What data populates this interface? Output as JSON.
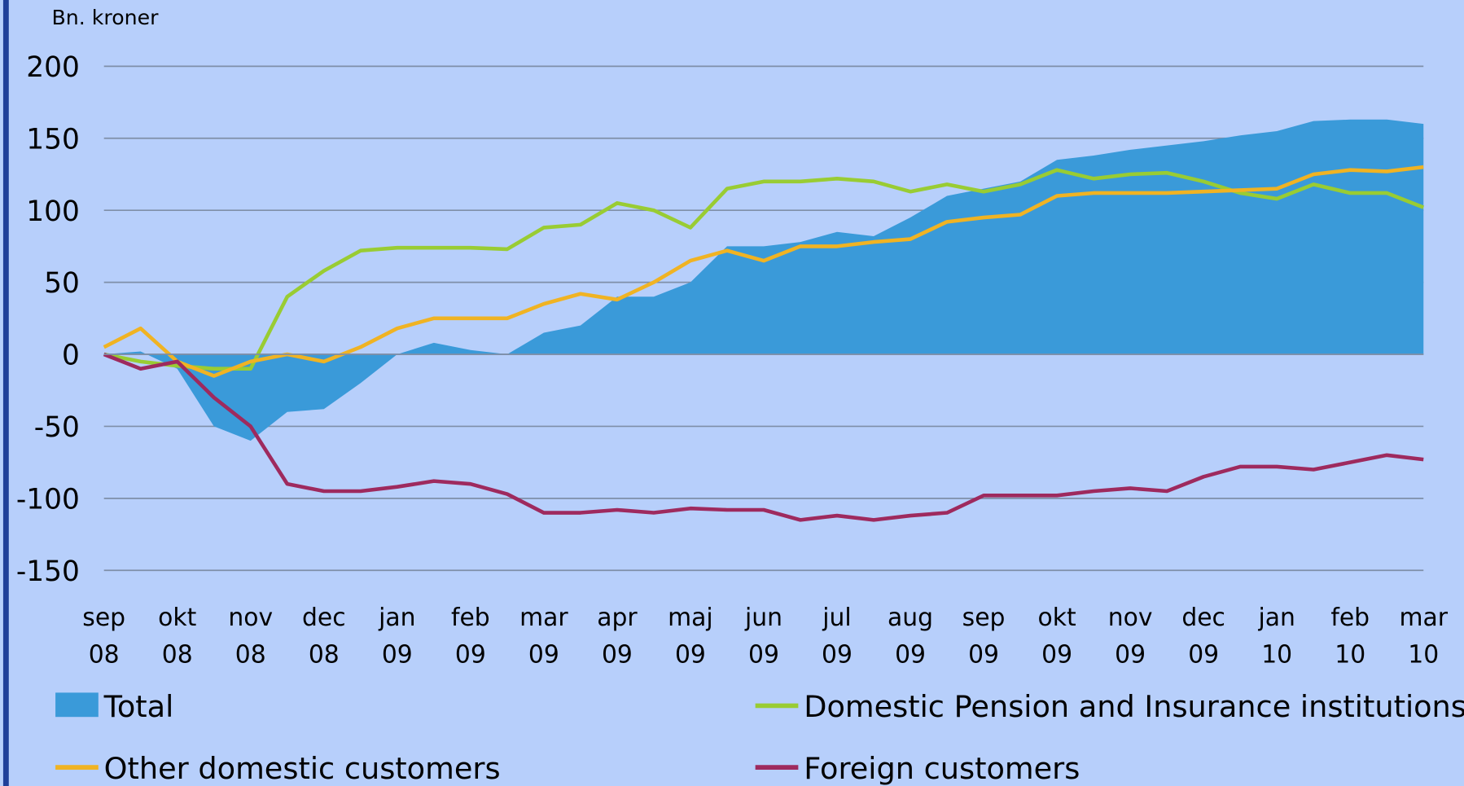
{
  "chart_data": {
    "type": "line",
    "y_label": "Bn. kroner",
    "categories": [
      "sep 08",
      null,
      "okt 08",
      null,
      "nov 08",
      null,
      "dec 08",
      null,
      "jan 09",
      null,
      "feb 09",
      null,
      "mar 09",
      null,
      "apr 09",
      null,
      "maj 09",
      null,
      "jun 09",
      null,
      "jul 09",
      null,
      "aug 09",
      null,
      "sep 09",
      null,
      "okt 09",
      null,
      "nov 09",
      null,
      "dec 09",
      null,
      "jan 10",
      null,
      "feb 10",
      null,
      "mar 10"
    ],
    "ylim": [
      -150,
      200
    ],
    "yticks": [
      -150,
      -100,
      -50,
      0,
      50,
      100,
      150,
      200
    ],
    "grid": true,
    "series": [
      {
        "name": "Total",
        "kind": "area",
        "color": "#3a9ad9",
        "values": [
          0,
          2,
          -10,
          -50,
          -60,
          -40,
          -38,
          -20,
          0,
          8,
          3,
          0,
          15,
          20,
          40,
          40,
          50,
          75,
          75,
          78,
          85,
          82,
          95,
          110,
          115,
          120,
          135,
          138,
          142,
          145,
          148,
          152,
          155,
          162,
          163,
          163,
          160
        ]
      },
      {
        "name": "Domestic Pension and Insurance institutions",
        "kind": "line",
        "color": "#99cc33",
        "values": [
          0,
          -5,
          -8,
          -10,
          -10,
          40,
          58,
          72,
          74,
          74,
          74,
          73,
          88,
          90,
          105,
          100,
          88,
          115,
          120,
          120,
          122,
          120,
          113,
          118,
          113,
          118,
          128,
          122,
          125,
          126,
          120,
          112,
          108,
          118,
          112,
          112,
          102
        ]
      },
      {
        "name": "Other domestic customers",
        "kind": "line",
        "color": "#f0b323",
        "values": [
          5,
          18,
          -5,
          -15,
          -5,
          0,
          -5,
          5,
          18,
          25,
          25,
          25,
          35,
          42,
          38,
          50,
          65,
          72,
          65,
          75,
          75,
          78,
          80,
          92,
          95,
          97,
          110,
          112,
          112,
          112,
          113,
          114,
          115,
          125,
          128,
          127,
          130
        ]
      },
      {
        "name": "Foreign customers",
        "kind": "line",
        "color": "#9e2a5e",
        "values": [
          0,
          -10,
          -5,
          -30,
          -50,
          -90,
          -95,
          -95,
          -92,
          -88,
          -90,
          -97,
          -110,
          -110,
          -108,
          -110,
          -107,
          -108,
          -108,
          -115,
          -112,
          -115,
          -112,
          -110,
          -98,
          -98,
          -98,
          -95,
          -93,
          -95,
          -85,
          -78,
          -78,
          -80,
          -75,
          -70,
          -73
        ]
      }
    ]
  }
}
